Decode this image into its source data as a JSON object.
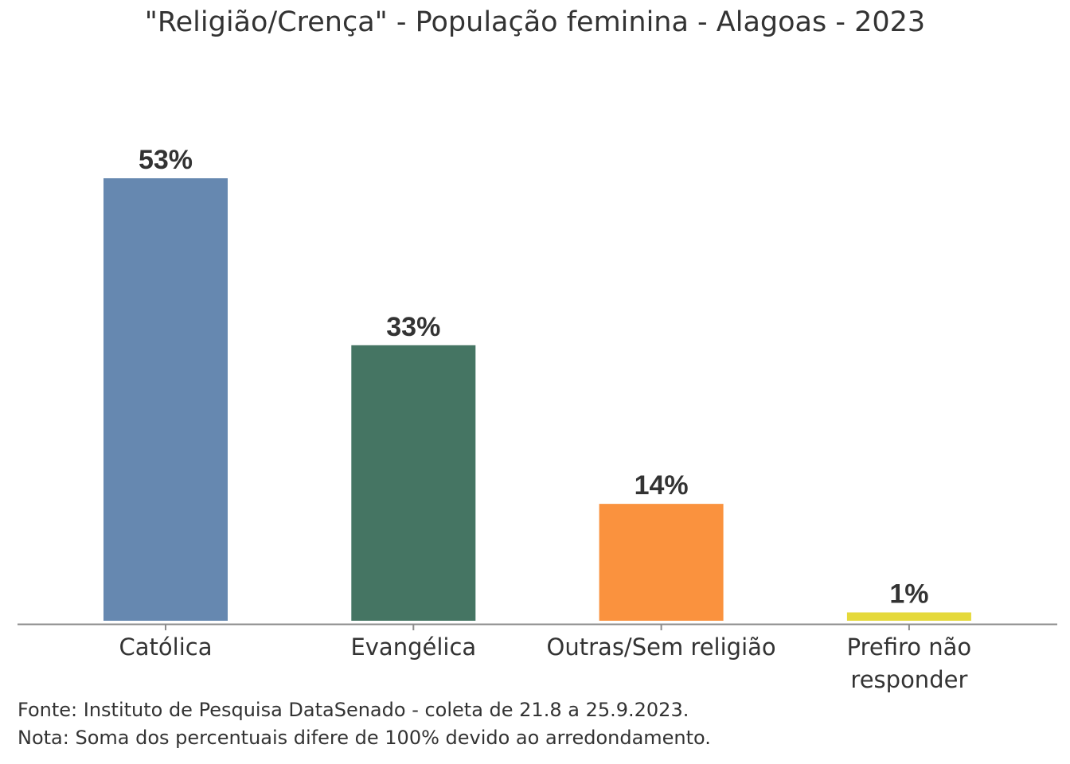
{
  "chart_data": {
    "type": "bar",
    "title": "\"Religião/Crença\" - População feminina - Alagoas - 2023",
    "categories": [
      "Católica",
      "Evangélica",
      "Outras/Sem religião",
      "Prefiro não responder"
    ],
    "values": [
      53,
      33,
      14,
      1
    ],
    "data_labels": [
      "53%",
      "33%",
      "14%",
      "1%"
    ],
    "colors": [
      "#6688b0",
      "#457563",
      "#fa923e",
      "#e5d93a"
    ],
    "xlabel": "",
    "ylabel": "",
    "ylim": [
      0,
      53
    ],
    "grid": false,
    "legend": "none"
  },
  "footer": {
    "source": "Fonte: Instituto de Pesquisa DataSenado - coleta de 21.8 a 25.9.2023.",
    "note": "Nota: Soma dos percentuais difere de 100% devido ao arredondamento."
  }
}
